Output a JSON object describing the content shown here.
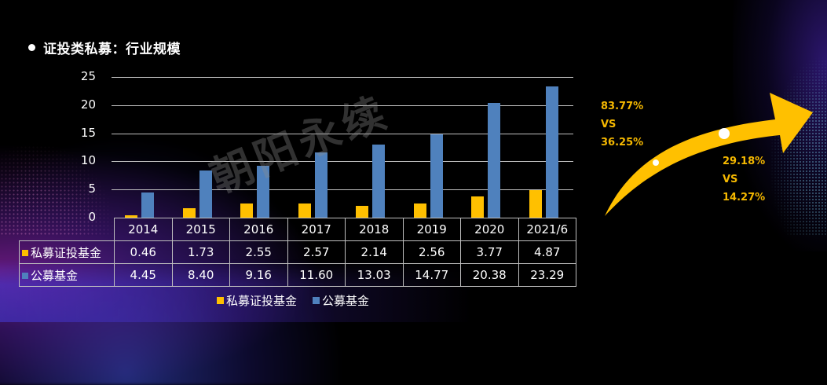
{
  "title": "证投类私募：行业规模",
  "watermark": "朝阳永续",
  "colors": {
    "private": "#ffc000",
    "public": "#4f81bd",
    "stat_text": "#f5b800",
    "arrow": "#ffc000"
  },
  "y_ticks": [
    "25",
    "20",
    "15",
    "10",
    "5",
    "0"
  ],
  "table": {
    "headers": [
      "2014",
      "2015",
      "2016",
      "2017",
      "2018",
      "2019",
      "2020",
      "2021/6"
    ],
    "rows": [
      {
        "label": "私募证投基金",
        "values": [
          "0.46",
          "1.73",
          "2.55",
          "2.57",
          "2.14",
          "2.56",
          "3.77",
          "4.87"
        ]
      },
      {
        "label": "公募基金",
        "values": [
          "4.45",
          "8.40",
          "9.16",
          "11.60",
          "13.03",
          "14.77",
          "20.38",
          "23.29"
        ]
      }
    ]
  },
  "legend": [
    {
      "label": "私募证投基金"
    },
    {
      "label": "公募基金"
    }
  ],
  "stats": {
    "left": {
      "a": "83.77%",
      "vs": "VS",
      "b": "36.25%"
    },
    "right": {
      "a": "29.18%",
      "vs": "VS",
      "b": "14.27%"
    }
  },
  "chart_data": {
    "type": "bar",
    "title": "证投类私募：行业规模",
    "categories": [
      "2014",
      "2015",
      "2016",
      "2017",
      "2018",
      "2019",
      "2020",
      "2021/6"
    ],
    "series": [
      {
        "name": "私募证投基金",
        "color": "#ffc000",
        "values": [
          0.46,
          1.73,
          2.55,
          2.57,
          2.14,
          2.56,
          3.77,
          4.87
        ]
      },
      {
        "name": "公募基金",
        "color": "#4f81bd",
        "values": [
          4.45,
          8.4,
          9.16,
          11.6,
          13.03,
          14.77,
          20.38,
          23.29
        ]
      }
    ],
    "xlabel": "",
    "ylabel": "",
    "ylim": [
      0,
      25
    ],
    "yticks": [
      0,
      5,
      10,
      15,
      20,
      25
    ],
    "grid": true,
    "legend_position": "bottom",
    "data_table": true,
    "annotations": [
      {
        "text": "83.77% VS 36.25%"
      },
      {
        "text": "29.18% VS 14.27%"
      }
    ]
  }
}
